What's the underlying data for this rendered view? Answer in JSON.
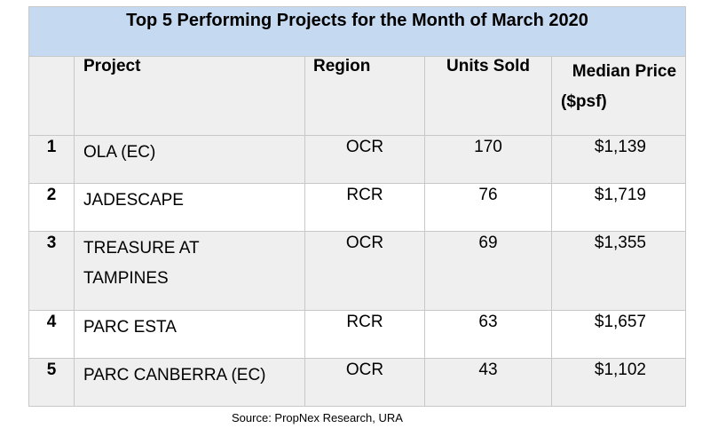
{
  "title": "Top 5 Performing Projects for the Month of March 2020",
  "headers": {
    "rank": "",
    "project": "Project",
    "region": "Region",
    "units": "Units Sold",
    "price_line1": "Median  Price",
    "price_line2": "($psf)"
  },
  "rows": [
    {
      "rank": "1",
      "project": "OLA (EC)",
      "region": "OCR",
      "units": "170",
      "price": "$1,139"
    },
    {
      "rank": "2",
      "project": "JADESCAPE",
      "region": "RCR",
      "units": "76",
      "price": "$1,719"
    },
    {
      "rank": "3",
      "project_line1": "TREASURE AT",
      "project_line2": "TAMPINES",
      "region": "OCR",
      "units": "69",
      "price": "$1,355"
    },
    {
      "rank": "4",
      "project": "PARC ESTA",
      "region": "RCR",
      "units": "63",
      "price": "$1,657"
    },
    {
      "rank": "5",
      "project": "PARC CANBERRA (EC)",
      "region": "OCR",
      "units": "43",
      "price": "$1,102"
    }
  ],
  "source": "Source: PropNex Research, URA",
  "colors": {
    "title_bg": "#c5d9f1",
    "shaded_row": "#efefef",
    "border": "#c8c8c8"
  }
}
